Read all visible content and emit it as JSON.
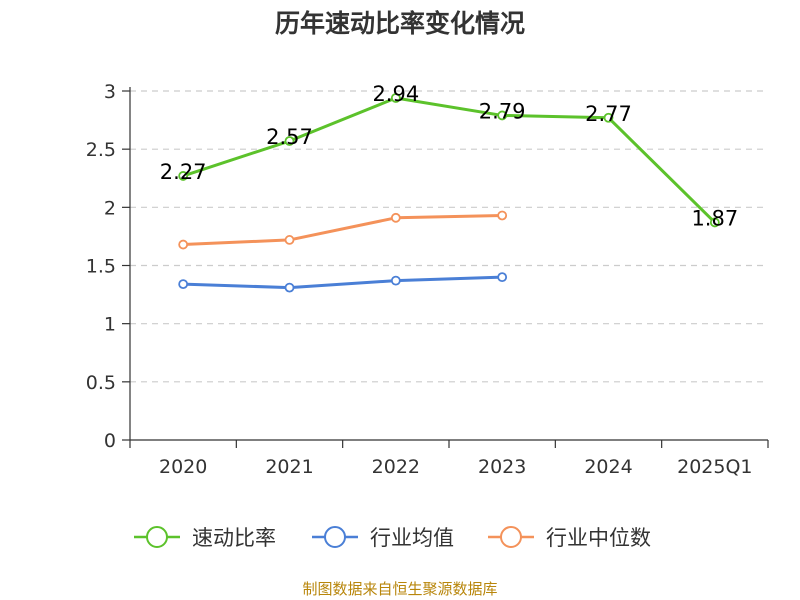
{
  "title": "历年速动比率变化情况",
  "source": "制图数据来自恒生聚源数据库",
  "chart_data": {
    "type": "line",
    "categories": [
      "2020",
      "2021",
      "2022",
      "2023",
      "2024",
      "2025Q1"
    ],
    "ylim": [
      0,
      3
    ],
    "yticks": [
      0,
      0.5,
      1,
      1.5,
      2,
      2.5,
      3
    ],
    "grid": "horizontal-dashed",
    "legend_position": "bottom",
    "series": [
      {
        "name": "速动比率",
        "color": "#5cc22b",
        "values": [
          2.27,
          2.57,
          2.94,
          2.79,
          2.77,
          1.87
        ],
        "labels": [
          "2.27",
          "2.57",
          "2.94",
          "2.79",
          "2.77",
          "1.87"
        ]
      },
      {
        "name": "行业均值",
        "color": "#4a7fd6",
        "values": [
          1.34,
          1.31,
          1.37,
          1.4,
          null,
          null
        ]
      },
      {
        "name": "行业中位数",
        "color": "#f4925a",
        "values": [
          1.68,
          1.72,
          1.91,
          1.93,
          null,
          null
        ]
      }
    ]
  }
}
